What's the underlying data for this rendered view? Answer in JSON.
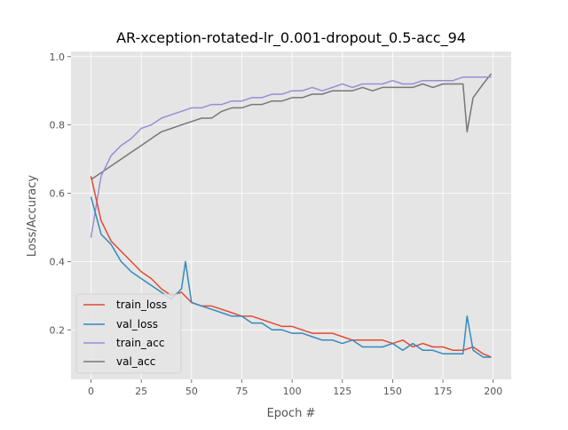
{
  "chart_data": {
    "type": "line",
    "title": "AR-xception-rotated-lr_0.001-dropout_0.5-acc_94",
    "xlabel": "Epoch #",
    "ylabel": "Loss/Accuracy",
    "xlim": [
      -9.95,
      208.95
    ],
    "ylim": [
      0.055,
      1.015
    ],
    "xticks": [
      0,
      25,
      50,
      75,
      100,
      125,
      150,
      175,
      200
    ],
    "yticks": [
      0.2,
      0.4,
      0.6,
      0.8,
      1.0
    ],
    "xtick_labels": [
      "0",
      "25",
      "50",
      "75",
      "100",
      "125",
      "150",
      "175",
      "200"
    ],
    "ytick_labels": [
      "0.2",
      "0.4",
      "0.6",
      "0.8",
      "1.0"
    ],
    "grid": true,
    "legend": "lower-left",
    "colors": {
      "background": "#e5e5e5",
      "grid": "#ffffff",
      "train_loss": "#e24a33",
      "val_loss": "#348abd",
      "train_acc": "#988ed5",
      "val_acc": "#777777"
    },
    "series": [
      {
        "name": "train_loss",
        "x": [
          0,
          5,
          10,
          15,
          20,
          25,
          30,
          35,
          40,
          45,
          50,
          55,
          60,
          65,
          70,
          75,
          80,
          85,
          90,
          95,
          100,
          105,
          110,
          115,
          120,
          125,
          130,
          135,
          140,
          145,
          150,
          155,
          160,
          165,
          170,
          175,
          180,
          185,
          190,
          195,
          199
        ],
        "values": [
          0.65,
          0.52,
          0.46,
          0.43,
          0.4,
          0.37,
          0.35,
          0.32,
          0.3,
          0.31,
          0.28,
          0.27,
          0.27,
          0.26,
          0.25,
          0.24,
          0.24,
          0.23,
          0.22,
          0.21,
          0.21,
          0.2,
          0.19,
          0.19,
          0.19,
          0.18,
          0.17,
          0.17,
          0.17,
          0.17,
          0.16,
          0.17,
          0.15,
          0.16,
          0.15,
          0.15,
          0.14,
          0.14,
          0.15,
          0.13,
          0.12
        ]
      },
      {
        "name": "val_loss",
        "x": [
          0,
          5,
          10,
          15,
          20,
          25,
          30,
          35,
          40,
          45,
          47,
          50,
          55,
          60,
          65,
          70,
          75,
          80,
          85,
          90,
          95,
          100,
          105,
          110,
          115,
          120,
          125,
          130,
          135,
          140,
          145,
          150,
          155,
          160,
          165,
          170,
          175,
          180,
          185,
          187,
          190,
          195,
          199
        ],
        "values": [
          0.59,
          0.48,
          0.45,
          0.4,
          0.37,
          0.35,
          0.33,
          0.31,
          0.29,
          0.32,
          0.4,
          0.28,
          0.27,
          0.26,
          0.25,
          0.24,
          0.24,
          0.22,
          0.22,
          0.2,
          0.2,
          0.19,
          0.19,
          0.18,
          0.17,
          0.17,
          0.16,
          0.17,
          0.15,
          0.15,
          0.15,
          0.16,
          0.14,
          0.16,
          0.14,
          0.14,
          0.13,
          0.13,
          0.13,
          0.24,
          0.14,
          0.12,
          0.12
        ]
      },
      {
        "name": "train_acc",
        "x": [
          0,
          5,
          10,
          15,
          20,
          25,
          30,
          35,
          40,
          45,
          50,
          55,
          60,
          65,
          70,
          75,
          80,
          85,
          90,
          95,
          100,
          105,
          110,
          115,
          120,
          125,
          130,
          135,
          140,
          145,
          150,
          155,
          160,
          165,
          170,
          175,
          180,
          185,
          190,
          195,
          199
        ],
        "values": [
          0.47,
          0.65,
          0.71,
          0.74,
          0.76,
          0.79,
          0.8,
          0.82,
          0.83,
          0.84,
          0.85,
          0.85,
          0.86,
          0.86,
          0.87,
          0.87,
          0.88,
          0.88,
          0.89,
          0.89,
          0.9,
          0.9,
          0.91,
          0.9,
          0.91,
          0.92,
          0.91,
          0.92,
          0.92,
          0.92,
          0.93,
          0.92,
          0.92,
          0.93,
          0.93,
          0.93,
          0.93,
          0.94,
          0.94,
          0.94,
          0.94
        ]
      },
      {
        "name": "val_acc",
        "x": [
          0,
          5,
          10,
          15,
          20,
          25,
          30,
          35,
          40,
          45,
          50,
          55,
          60,
          65,
          70,
          75,
          80,
          85,
          90,
          95,
          100,
          105,
          110,
          115,
          120,
          125,
          130,
          135,
          140,
          145,
          150,
          155,
          160,
          165,
          170,
          175,
          180,
          185,
          187,
          190,
          195,
          199
        ],
        "values": [
          0.64,
          0.66,
          0.68,
          0.7,
          0.72,
          0.74,
          0.76,
          0.78,
          0.79,
          0.8,
          0.81,
          0.82,
          0.82,
          0.84,
          0.85,
          0.85,
          0.86,
          0.86,
          0.87,
          0.87,
          0.88,
          0.88,
          0.89,
          0.89,
          0.9,
          0.9,
          0.9,
          0.91,
          0.9,
          0.91,
          0.91,
          0.91,
          0.91,
          0.92,
          0.91,
          0.92,
          0.92,
          0.92,
          0.78,
          0.88,
          0.92,
          0.95
        ]
      }
    ]
  }
}
